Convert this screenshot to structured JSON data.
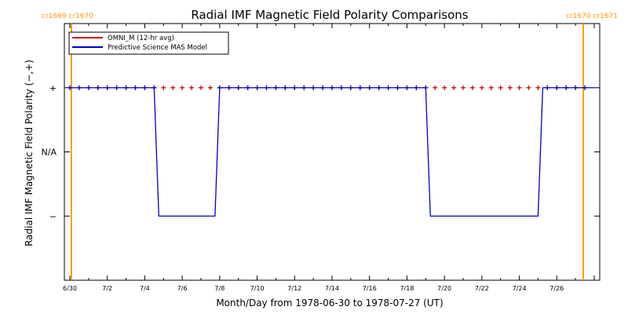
{
  "chart_data": {
    "type": "line",
    "title": "Radial IMF Magnetic Field Polarity Comparisons",
    "xlabel": "Month/Day from 1978-06-30 to 1978-07-27 (UT)",
    "ylabel": "Radial IMF Magnetic Field Polarity (−,+)",
    "x_start": "1978-06-30",
    "x_end": "1978-07-28",
    "x_tick_labels": [
      "6/30",
      "7/2",
      "7/4",
      "7/6",
      "7/8",
      "7/10",
      "7/12",
      "7/14",
      "7/16",
      "7/18",
      "7/20",
      "7/22",
      "7/24",
      "7/26"
    ],
    "y_tick_labels": [
      "+",
      "N/A",
      "−"
    ],
    "y_values_meaning": {
      "+": 1,
      "N/A": 0,
      "−": -1
    },
    "ylim": [
      -2,
      2
    ],
    "carrington_markers": [
      {
        "date": "1978-06-30 02:00",
        "label": "cr1669 cr1670"
      },
      {
        "date": "1978-07-27 10:00",
        "label": "cr1670 cr1671"
      }
    ],
    "series": [
      {
        "name": "OMNI_M (12-hr avg)",
        "color": "#cc0000",
        "marker": "+",
        "points": [
          {
            "x": "1978-06-30",
            "y": 1
          },
          {
            "x": "1978-06-30 12:00",
            "y": 1
          },
          {
            "x": "1978-07-01",
            "y": 1
          },
          {
            "x": "1978-07-01 12:00",
            "y": 1
          },
          {
            "x": "1978-07-02",
            "y": 1
          },
          {
            "x": "1978-07-02 12:00",
            "y": 1
          },
          {
            "x": "1978-07-03",
            "y": 1
          },
          {
            "x": "1978-07-03 12:00",
            "y": 1
          },
          {
            "x": "1978-07-04",
            "y": 1
          },
          {
            "x": "1978-07-04 12:00",
            "y": 1
          },
          {
            "x": "1978-07-05",
            "y": 1
          },
          {
            "x": "1978-07-05 12:00",
            "y": 1
          },
          {
            "x": "1978-07-06",
            "y": 1
          },
          {
            "x": "1978-07-06 12:00",
            "y": 1
          },
          {
            "x": "1978-07-07",
            "y": 1
          },
          {
            "x": "1978-07-07 12:00",
            "y": 1
          },
          {
            "x": "1978-07-08",
            "y": 1
          },
          {
            "x": "1978-07-08 12:00",
            "y": 1
          },
          {
            "x": "1978-07-09",
            "y": 1
          },
          {
            "x": "1978-07-09 12:00",
            "y": 1
          },
          {
            "x": "1978-07-10",
            "y": 1
          },
          {
            "x": "1978-07-10 12:00",
            "y": 1
          },
          {
            "x": "1978-07-11",
            "y": 1
          },
          {
            "x": "1978-07-11 12:00",
            "y": 1
          },
          {
            "x": "1978-07-12",
            "y": 1
          },
          {
            "x": "1978-07-12 12:00",
            "y": 1
          },
          {
            "x": "1978-07-13",
            "y": 1
          },
          {
            "x": "1978-07-13 12:00",
            "y": 1
          },
          {
            "x": "1978-07-14",
            "y": 1
          },
          {
            "x": "1978-07-14 12:00",
            "y": 1
          },
          {
            "x": "1978-07-15",
            "y": 1
          },
          {
            "x": "1978-07-15 12:00",
            "y": 1
          },
          {
            "x": "1978-07-16",
            "y": 1
          },
          {
            "x": "1978-07-16 12:00",
            "y": 1
          },
          {
            "x": "1978-07-17",
            "y": 1
          },
          {
            "x": "1978-07-17 12:00",
            "y": 1
          },
          {
            "x": "1978-07-18",
            "y": 1
          },
          {
            "x": "1978-07-18 12:00",
            "y": 1
          },
          {
            "x": "1978-07-19",
            "y": 1
          },
          {
            "x": "1978-07-19 12:00",
            "y": 1
          },
          {
            "x": "1978-07-20",
            "y": 1
          },
          {
            "x": "1978-07-20 12:00",
            "y": 1
          },
          {
            "x": "1978-07-21",
            "y": 1
          },
          {
            "x": "1978-07-21 12:00",
            "y": 1
          },
          {
            "x": "1978-07-22",
            "y": 1
          },
          {
            "x": "1978-07-22 12:00",
            "y": 1
          },
          {
            "x": "1978-07-23",
            "y": 1
          },
          {
            "x": "1978-07-23 12:00",
            "y": 1
          },
          {
            "x": "1978-07-24",
            "y": 1
          },
          {
            "x": "1978-07-24 12:00",
            "y": 1
          },
          {
            "x": "1978-07-25",
            "y": 1
          },
          {
            "x": "1978-07-25 12:00",
            "y": 1
          },
          {
            "x": "1978-07-26",
            "y": 1
          },
          {
            "x": "1978-07-26 12:00",
            "y": 1
          },
          {
            "x": "1978-07-27",
            "y": 1
          },
          {
            "x": "1978-07-27 12:00",
            "y": 1
          }
        ]
      },
      {
        "name": "Predictive Science MAS Model",
        "color": "#0000cc",
        "marker": "+",
        "points": [
          {
            "x": "1978-06-30",
            "y": 1
          },
          {
            "x": "1978-07-04 12:00",
            "y": 1
          },
          {
            "x": "1978-07-04 18:00",
            "y": -1
          },
          {
            "x": "1978-07-07 18:00",
            "y": -1
          },
          {
            "x": "1978-07-08",
            "y": 1
          },
          {
            "x": "1978-07-19",
            "y": 1
          },
          {
            "x": "1978-07-19 06:00",
            "y": -1
          },
          {
            "x": "1978-07-25",
            "y": -1
          },
          {
            "x": "1978-07-25 06:00",
            "y": 1
          },
          {
            "x": "1978-07-28",
            "y": 1
          }
        ],
        "marker_x": [
          "1978-06-30",
          "1978-06-30 12:00",
          "1978-07-01",
          "1978-07-01 12:00",
          "1978-07-02",
          "1978-07-02 12:00",
          "1978-07-03",
          "1978-07-03 12:00",
          "1978-07-04",
          "1978-07-04 12:00",
          "1978-07-08",
          "1978-07-08 12:00",
          "1978-07-09",
          "1978-07-09 12:00",
          "1978-07-10",
          "1978-07-10 12:00",
          "1978-07-11",
          "1978-07-11 12:00",
          "1978-07-12",
          "1978-07-12 12:00",
          "1978-07-13",
          "1978-07-13 12:00",
          "1978-07-14",
          "1978-07-14 12:00",
          "1978-07-15",
          "1978-07-15 12:00",
          "1978-07-16",
          "1978-07-16 12:00",
          "1978-07-17",
          "1978-07-17 12:00",
          "1978-07-18",
          "1978-07-18 12:00",
          "1978-07-19",
          "1978-07-25 12:00",
          "1978-07-26",
          "1978-07-26 12:00",
          "1978-07-27",
          "1978-07-27 12:00"
        ]
      }
    ],
    "legend_position": "top-left",
    "marker_color": "#ff9900"
  }
}
